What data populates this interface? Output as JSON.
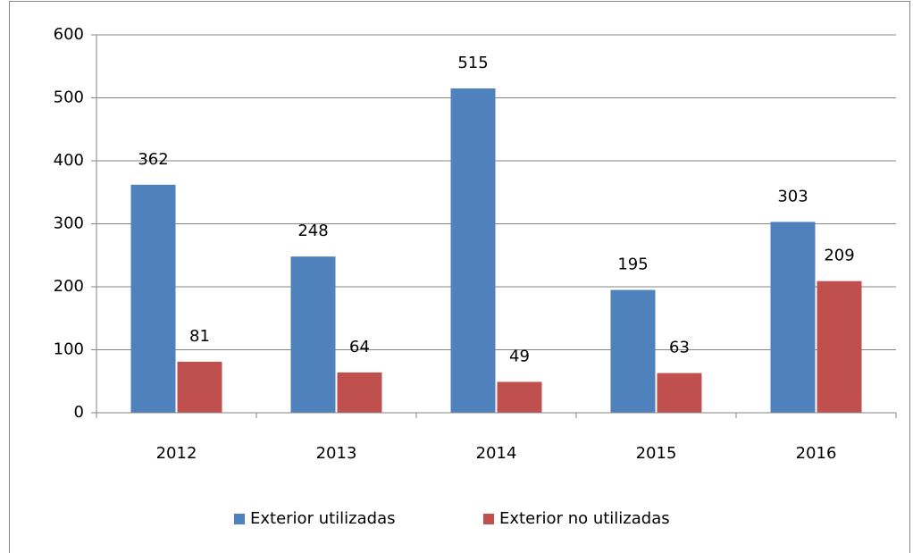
{
  "chart_data": {
    "type": "bar",
    "categories": [
      "2012",
      "2013",
      "2014",
      "2015",
      "2016"
    ],
    "series": [
      {
        "name": "Exterior utilizadas",
        "color": "#4f81bd",
        "values": [
          362,
          248,
          515,
          195,
          303
        ]
      },
      {
        "name": "Exterior no utilizadas",
        "color": "#c0504d",
        "values": [
          81,
          64,
          49,
          63,
          209
        ]
      }
    ],
    "ylim": [
      0,
      600
    ],
    "yticks": [
      0,
      100,
      200,
      300,
      400,
      500,
      600
    ],
    "grid": true,
    "legend": "bottom"
  }
}
